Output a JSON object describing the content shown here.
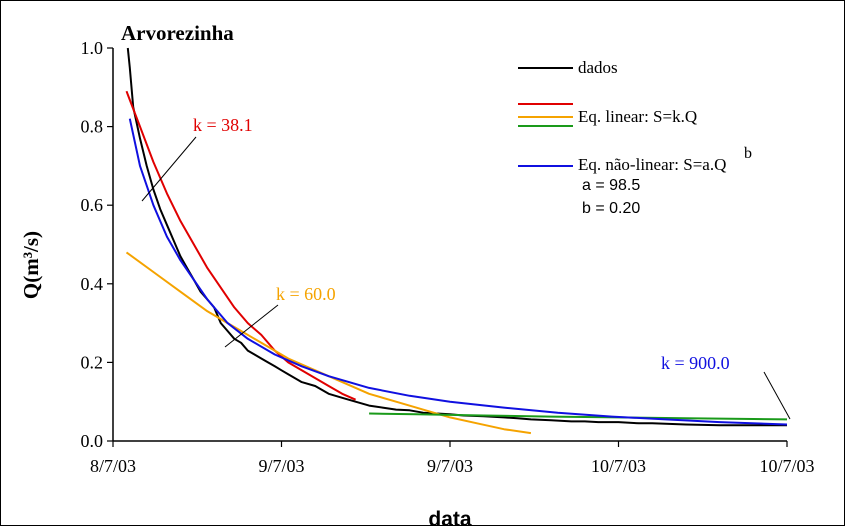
{
  "chart_data": {
    "type": "line",
    "title": "Arvorezinha",
    "xlabel": "data",
    "ylabel": "Q(m³/s)",
    "x_tick_labels": [
      "8/7/03",
      "9/7/03",
      "9/7/03",
      "10/7/03",
      "10/7/03"
    ],
    "y_ticks": [
      "0.0",
      "0.2",
      "0.4",
      "0.6",
      "0.8",
      "1.0"
    ],
    "ylim": [
      0,
      1.0
    ],
    "xlim": [
      0,
      100
    ],
    "grid": false,
    "legend_position": "top-right",
    "colors": {
      "dados": "#000000",
      "linear_red": "#e00000",
      "linear_orange": "#f5a300",
      "linear_green": "#1a9a1a",
      "nonlinear": "#1010e0"
    },
    "legend": {
      "dados": "dados",
      "linear": "Eq. linear: S=k.Q",
      "nonlinear": "Eq. não-linear: S=a.Q",
      "nonlinear_exp": "b",
      "a": "a = 98.5",
      "b": "b = 0.20"
    },
    "annotations": {
      "red": "k = 38.1",
      "orange": "k = 60.0",
      "blue": "k = 900.0"
    },
    "series": [
      {
        "name": "dados",
        "x": [
          2.2,
          2.5,
          3,
          4,
          5,
          6,
          7,
          8,
          9,
          10,
          11,
          12,
          13,
          14,
          15,
          16,
          17,
          18,
          19,
          20,
          21,
          22,
          23,
          24,
          25,
          26,
          28,
          30,
          32,
          34,
          36,
          38,
          40,
          42,
          44,
          46,
          48,
          50,
          52,
          55,
          58,
          60,
          62,
          65,
          68,
          70,
          72,
          75,
          78,
          80,
          85,
          90,
          95,
          100
        ],
        "y": [
          1.0,
          0.95,
          0.85,
          0.77,
          0.7,
          0.64,
          0.59,
          0.55,
          0.51,
          0.47,
          0.44,
          0.41,
          0.38,
          0.36,
          0.34,
          0.3,
          0.28,
          0.26,
          0.25,
          0.23,
          0.22,
          0.21,
          0.2,
          0.19,
          0.18,
          0.17,
          0.15,
          0.14,
          0.12,
          0.11,
          0.1,
          0.09,
          0.085,
          0.08,
          0.078,
          0.072,
          0.07,
          0.068,
          0.065,
          0.063,
          0.06,
          0.058,
          0.055,
          0.053,
          0.05,
          0.05,
          0.048,
          0.048,
          0.045,
          0.045,
          0.042,
          0.04,
          0.04,
          0.04
        ]
      },
      {
        "name": "Eq. linear: S=k.Q",
        "x": [
          2,
          4,
          6,
          8,
          10,
          12,
          14,
          16,
          18,
          20,
          22,
          24,
          26,
          28,
          30,
          32,
          34,
          36
        ],
        "y": [
          0.89,
          0.8,
          0.71,
          0.63,
          0.56,
          0.5,
          0.44,
          0.39,
          0.34,
          0.3,
          0.27,
          0.23,
          0.2,
          0.18,
          0.16,
          0.14,
          0.12,
          0.105
        ]
      },
      {
        "name": "Eq. linear: S=k.Q",
        "x": [
          2,
          6,
          10,
          14,
          18,
          22,
          26,
          30,
          34,
          38,
          42,
          46,
          50,
          54,
          58,
          62
        ],
        "y": [
          0.48,
          0.43,
          0.38,
          0.33,
          0.29,
          0.25,
          0.21,
          0.18,
          0.15,
          0.12,
          0.1,
          0.08,
          0.06,
          0.045,
          0.03,
          0.02
        ]
      },
      {
        "name": "Eq. linear: S=k.Q",
        "x": [
          38,
          45,
          55,
          65,
          75,
          85,
          95,
          100
        ],
        "y": [
          0.07,
          0.068,
          0.065,
          0.062,
          0.06,
          0.058,
          0.056,
          0.055
        ]
      },
      {
        "name": "Eq. não-linear: S=a.Q^b",
        "x": [
          2.5,
          4,
          6,
          8,
          10,
          12,
          14,
          17,
          20,
          24,
          28,
          32,
          38,
          44,
          50,
          58,
          66,
          74,
          82,
          90,
          100
        ],
        "y": [
          0.82,
          0.7,
          0.6,
          0.52,
          0.46,
          0.41,
          0.36,
          0.3,
          0.26,
          0.22,
          0.19,
          0.165,
          0.135,
          0.115,
          0.1,
          0.085,
          0.072,
          0.062,
          0.055,
          0.048,
          0.042
        ]
      }
    ]
  }
}
